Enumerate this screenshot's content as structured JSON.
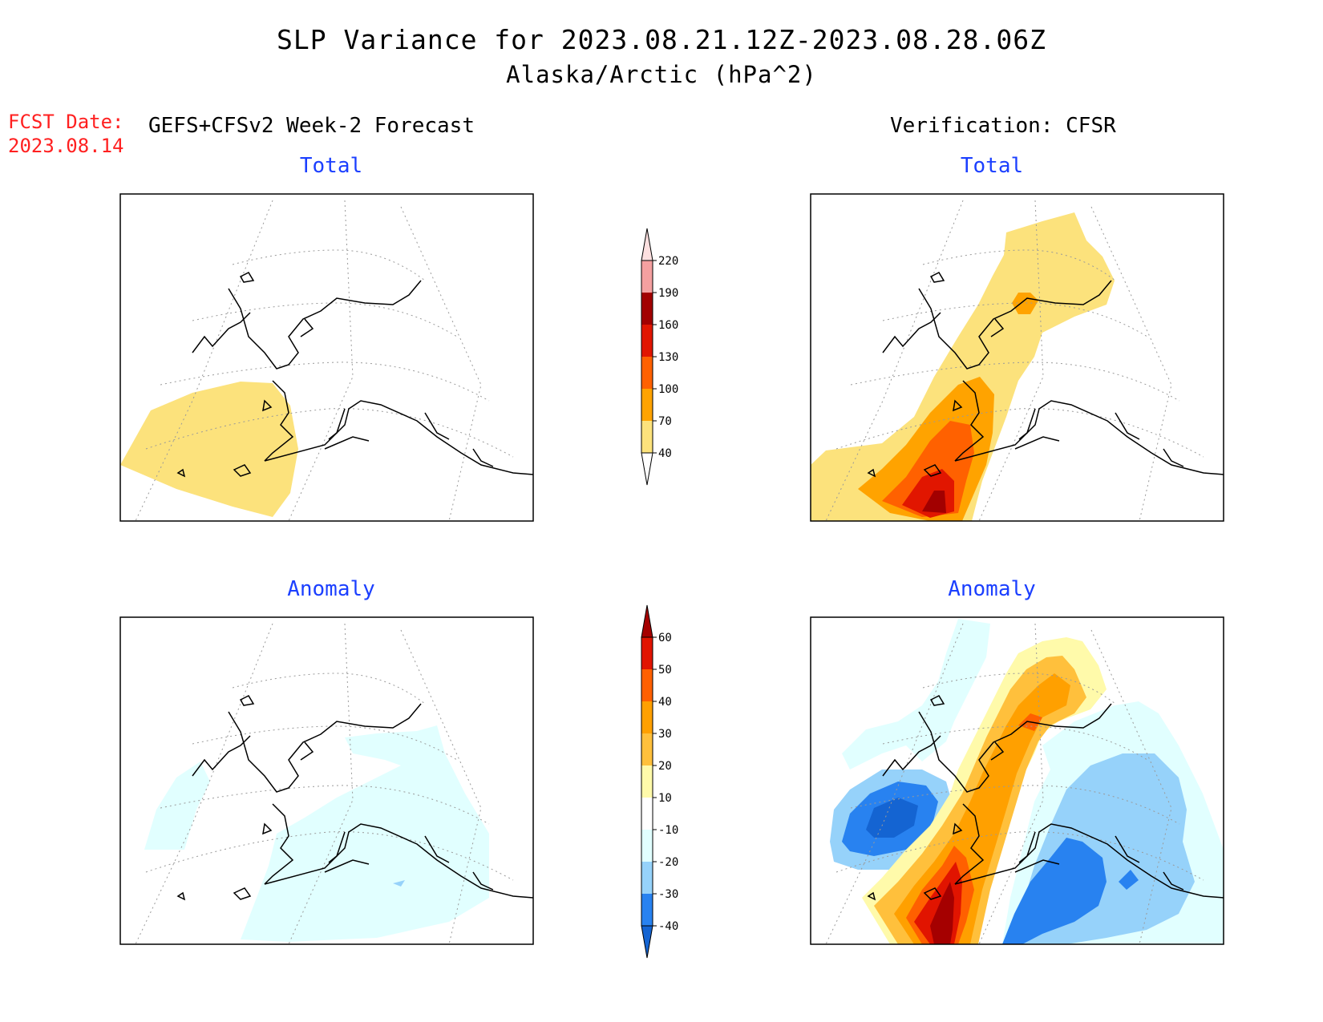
{
  "title": {
    "line1": "SLP Variance for 2023.08.21.12Z-2023.08.28.06Z",
    "line2": "Alaska/Arctic (hPa^2)"
  },
  "forecast_date": {
    "label": "FCST Date:",
    "value": "2023.08.14"
  },
  "headers": {
    "left": "GEFS+CFSv2 Week-2 Forecast",
    "right": "Verification: CFSR"
  },
  "panels": {
    "forecast_total": {
      "title": "Total"
    },
    "verification_total": {
      "title": "Total"
    },
    "forecast_anomaly": {
      "title": "Anomaly"
    },
    "verification_anomaly": {
      "title": "Anomaly"
    }
  },
  "colorbars": {
    "total": {
      "labels": [
        "40",
        "70",
        "100",
        "130",
        "160",
        "190",
        "220"
      ],
      "colors": [
        "#fce27c",
        "#ffa300",
        "#ff6100",
        "#e11600",
        "#a20000",
        "#f4a0a0",
        "#fde0e0"
      ]
    },
    "anomaly": {
      "labels": [
        "-40",
        "-30",
        "-20",
        "-10",
        "10",
        "20",
        "30",
        "40",
        "50",
        "60"
      ],
      "colors": [
        "#1464d2",
        "#2882f0",
        "#96d2fa",
        "#e1ffff",
        "#ffffff",
        "#fffaaa",
        "#ffc03c",
        "#ffa000",
        "#ff6000",
        "#e11400",
        "#a50000"
      ]
    }
  }
}
